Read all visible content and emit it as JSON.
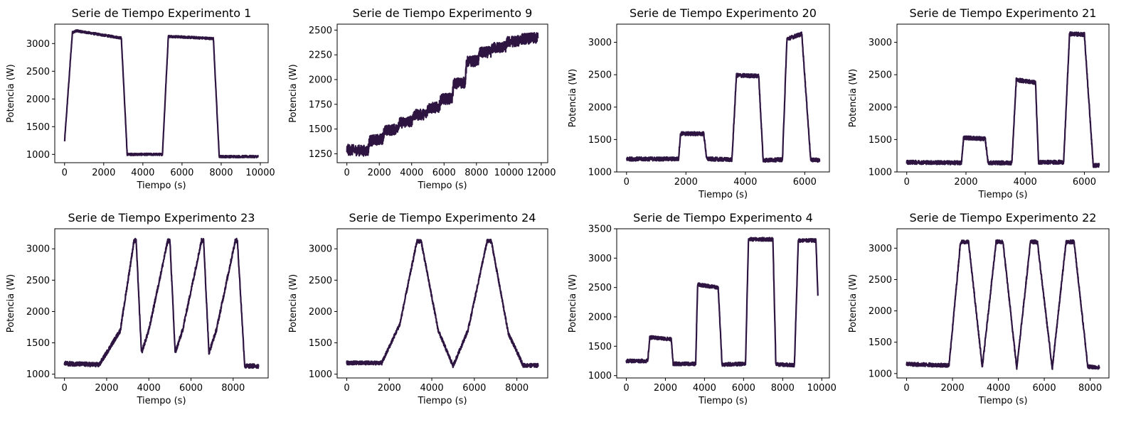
{
  "style": {
    "line_color": "#2e1541",
    "background": "#ffffff"
  },
  "chart_data": [
    {
      "type": "line",
      "title": "Serie de Tiempo Experimento 1",
      "xlabel": "Tiempo (s)",
      "ylabel": "Potencia (W)",
      "xlim": [
        -500,
        10400
      ],
      "ylim": [
        850,
        3350
      ],
      "xticks": [
        0,
        2000,
        4000,
        6000,
        8000,
        10000
      ],
      "yticks": [
        1000,
        1500,
        2000,
        2500,
        3000
      ],
      "noise": 20,
      "series": [
        {
          "x": [
            0,
            400,
            600,
            2900,
            3200,
            5000,
            5300,
            7600,
            7900,
            9900
          ],
          "y": [
            1230,
            3200,
            3230,
            3100,
            1000,
            1000,
            3130,
            3090,
            960,
            960
          ]
        }
      ]
    },
    {
      "type": "line",
      "title": "Serie de Tiempo Experimento 9",
      "xlabel": "Tiempo (s)",
      "ylabel": "Potencia (W)",
      "xlim": [
        -600,
        12400
      ],
      "ylim": [
        1160,
        2560
      ],
      "xticks": [
        0,
        2000,
        4000,
        6000,
        8000,
        10000,
        12000
      ],
      "yticks": [
        1250,
        1500,
        1750,
        2000,
        2250,
        2500
      ],
      "noise": 55,
      "series": [
        {
          "x": [
            0,
            1300,
            1400,
            2200,
            2300,
            3100,
            3200,
            4000,
            4100,
            4900,
            5000,
            5700,
            5800,
            6500,
            6600,
            7300,
            7400,
            8100,
            8200,
            8900,
            9000,
            9800,
            9900,
            10600,
            10700,
            11800
          ],
          "y": [
            1290,
            1280,
            1380,
            1400,
            1480,
            1500,
            1560,
            1580,
            1640,
            1650,
            1710,
            1720,
            1800,
            1810,
            1960,
            1970,
            2180,
            2190,
            2270,
            2280,
            2320,
            2330,
            2380,
            2390,
            2410,
            2420
          ]
        }
      ]
    },
    {
      "type": "line",
      "title": "Serie de Tiempo Experimento 20",
      "xlabel": "Tiempo (s)",
      "ylabel": "Potencia (W)",
      "xlim": [
        -330,
        6830
      ],
      "ylim": [
        1000,
        3280
      ],
      "xticks": [
        0,
        2000,
        4000,
        6000
      ],
      "yticks": [
        1000,
        1500,
        2000,
        2500,
        3000
      ],
      "noise": 30,
      "series": [
        {
          "x": [
            0,
            1750,
            1820,
            2600,
            2700,
            3550,
            3700,
            4450,
            4600,
            5250,
            5400,
            5900,
            6200,
            6500
          ],
          "y": [
            1200,
            1200,
            1590,
            1590,
            1200,
            1190,
            2490,
            2480,
            1180,
            1190,
            3050,
            3130,
            1190,
            1180
          ]
        }
      ]
    },
    {
      "type": "line",
      "title": "Serie de Tiempo Experimento 21",
      "xlabel": "Tiempo (s)",
      "ylabel": "Potencia (W)",
      "xlim": [
        -330,
        6830
      ],
      "ylim": [
        1000,
        3280
      ],
      "xticks": [
        0,
        2000,
        4000,
        6000
      ],
      "yticks": [
        1000,
        1500,
        2000,
        2500,
        3000
      ],
      "noise": 30,
      "series": [
        {
          "x": [
            0,
            1850,
            1920,
            2650,
            2750,
            3550,
            3700,
            4350,
            4450,
            5300,
            5500,
            6000,
            6300,
            6500
          ],
          "y": [
            1150,
            1140,
            1530,
            1510,
            1140,
            1140,
            2420,
            2380,
            1150,
            1150,
            3130,
            3120,
            1100,
            1100
          ]
        }
      ]
    },
    {
      "type": "line",
      "title": "Serie de Tiempo Experimento 23",
      "xlabel": "Tiempo (s)",
      "ylabel": "Potencia (W)",
      "xlim": [
        -460,
        9660
      ],
      "ylim": [
        940,
        3320
      ],
      "xticks": [
        0,
        2000,
        4000,
        6000,
        8000
      ],
      "yticks": [
        1000,
        1500,
        2000,
        2500,
        3000
      ],
      "noise": 35,
      "series": [
        {
          "x": [
            0,
            1650,
            2650,
            3300,
            3400,
            3650,
            4000,
            4900,
            5000,
            5250,
            5600,
            6500,
            6600,
            6850,
            7200,
            8100,
            8200,
            8550,
            9200
          ],
          "y": [
            1170,
            1150,
            1700,
            3130,
            3130,
            1340,
            1700,
            3130,
            3130,
            1340,
            1700,
            3130,
            3130,
            1340,
            1700,
            3130,
            3130,
            1130,
            1130
          ]
        }
      ]
    },
    {
      "type": "line",
      "title": "Serie de Tiempo Experimento 24",
      "xlabel": "Tiempo (s)",
      "ylabel": "Potencia (W)",
      "xlim": [
        -450,
        9450
      ],
      "ylim": [
        940,
        3320
      ],
      "xticks": [
        0,
        2000,
        4000,
        6000,
        8000
      ],
      "yticks": [
        1000,
        1500,
        2000,
        2500,
        3000
      ],
      "noise": 30,
      "series": [
        {
          "x": [
            0,
            1650,
            2500,
            3300,
            3500,
            4300,
            5000,
            5700,
            6600,
            6800,
            7600,
            8300,
            9000
          ],
          "y": [
            1180,
            1180,
            1800,
            3120,
            3120,
            1700,
            1130,
            1700,
            3120,
            3120,
            1650,
            1140,
            1140
          ]
        }
      ]
    },
    {
      "type": "line",
      "title": "Serie de Tiempo Experimento 4",
      "xlabel": "Tiempo (s)",
      "ylabel": "Potencia (W)",
      "xlim": [
        -490,
        10390
      ],
      "ylim": [
        960,
        3500
      ],
      "xticks": [
        0,
        2000,
        4000,
        6000,
        8000,
        10000
      ],
      "yticks": [
        1000,
        1500,
        2000,
        2500,
        3000,
        3500
      ],
      "noise": 30,
      "series": [
        {
          "x": [
            0,
            1100,
            1200,
            2300,
            2400,
            3550,
            3650,
            4700,
            4900,
            6100,
            6250,
            7500,
            7650,
            8600,
            8800,
            9700,
            9800
          ],
          "y": [
            1250,
            1250,
            1650,
            1620,
            1200,
            1200,
            2550,
            2500,
            1190,
            1200,
            3320,
            3320,
            1190,
            1180,
            3300,
            3300,
            2380
          ]
        }
      ]
    },
    {
      "type": "line",
      "title": "Serie de Tiempo Experimento 22",
      "xlabel": "Tiempo (s)",
      "ylabel": "Potencia (W)",
      "xlim": [
        -420,
        8820
      ],
      "ylim": [
        930,
        3310
      ],
      "xticks": [
        0,
        2000,
        4000,
        6000,
        8000
      ],
      "yticks": [
        1000,
        1500,
        2000,
        2500,
        3000
      ],
      "noise": 30,
      "series": [
        {
          "x": [
            0,
            1850,
            2350,
            2700,
            3300,
            3900,
            4200,
            4800,
            5400,
            5700,
            6350,
            6950,
            7300,
            7900,
            8400
          ],
          "y": [
            1150,
            1130,
            3100,
            3100,
            1100,
            3100,
            3100,
            1090,
            3100,
            3100,
            1080,
            3100,
            3100,
            1110,
            1100
          ]
        }
      ]
    }
  ]
}
